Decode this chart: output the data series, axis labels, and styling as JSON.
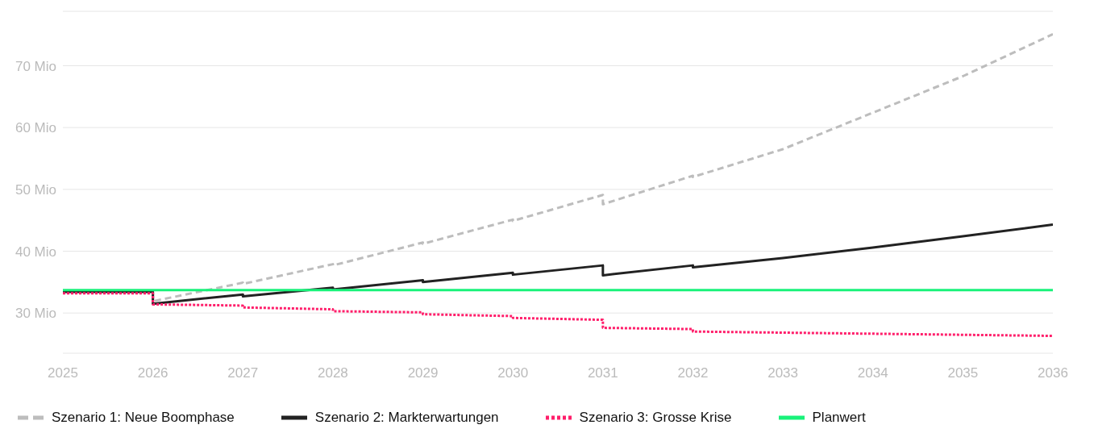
{
  "chart_data": {
    "type": "line",
    "xlim": [
      2025,
      2036
    ],
    "xticks": [
      2025,
      2026,
      2027,
      2028,
      2029,
      2030,
      2031,
      2032,
      2033,
      2034,
      2035,
      2036
    ],
    "ylim": [
      23.5,
      78.8
    ],
    "yticks": [
      {
        "value": 23.5,
        "label": null
      },
      {
        "value": 30,
        "label": "30 Mio"
      },
      {
        "value": 40,
        "label": "40 Mio"
      },
      {
        "value": 50,
        "label": "50 Mio"
      },
      {
        "value": 60,
        "label": "60 Mio"
      },
      {
        "value": 70,
        "label": "70 Mio"
      },
      {
        "value": 78.8,
        "label": null
      }
    ],
    "grid": "y",
    "legend": "bottom",
    "marker": "none",
    "series": [
      {
        "name": "Szenario 1: Neue Boomphase",
        "color": "#bdbdbd",
        "line_style": "dashed",
        "x": [
          2026,
          2026,
          2027,
          2027,
          2028,
          2028,
          2029,
          2029,
          2030,
          2030,
          2031,
          2031,
          2032,
          2032,
          2033,
          2034,
          2035,
          2036
        ],
        "values": [
          33.3,
          31.9,
          34.9,
          34.7,
          37.9,
          37.7,
          41.4,
          41.2,
          45.1,
          44.9,
          49.1,
          47.6,
          52.2,
          52.0,
          56.5,
          62.4,
          68.3,
          75.1
        ]
      },
      {
        "name": "Szenario 2: Markterwartungen",
        "color": "#222222",
        "line_style": "solid",
        "x": [
          2025,
          2026,
          2026,
          2027,
          2027,
          2028,
          2028,
          2029,
          2029,
          2030,
          2030,
          2031,
          2031,
          2032,
          2032,
          2033,
          2034,
          2035,
          2036
        ],
        "values": [
          33.4,
          33.4,
          31.5,
          33.0,
          32.7,
          34.1,
          33.8,
          35.3,
          35.0,
          36.5,
          36.2,
          37.7,
          36.1,
          37.7,
          37.4,
          38.9,
          40.6,
          42.4,
          44.3
        ]
      },
      {
        "name": "Szenario 3: Grosse Krise",
        "color": "#ff1f6b",
        "line_style": "dotted",
        "x": [
          2025,
          2026,
          2026,
          2027,
          2027,
          2028,
          2028,
          2029,
          2029,
          2030,
          2030,
          2031,
          2031,
          2032,
          2032,
          2036
        ],
        "values": [
          33.2,
          33.2,
          31.4,
          31.2,
          30.9,
          30.6,
          30.3,
          30.1,
          29.8,
          29.5,
          29.2,
          28.9,
          27.6,
          27.4,
          27.0,
          26.3
        ]
      },
      {
        "name": "Planwert",
        "color": "#19f27a",
        "line_style": "solid",
        "x": [
          2025,
          2036
        ],
        "values": [
          33.7,
          33.7
        ]
      }
    ]
  }
}
